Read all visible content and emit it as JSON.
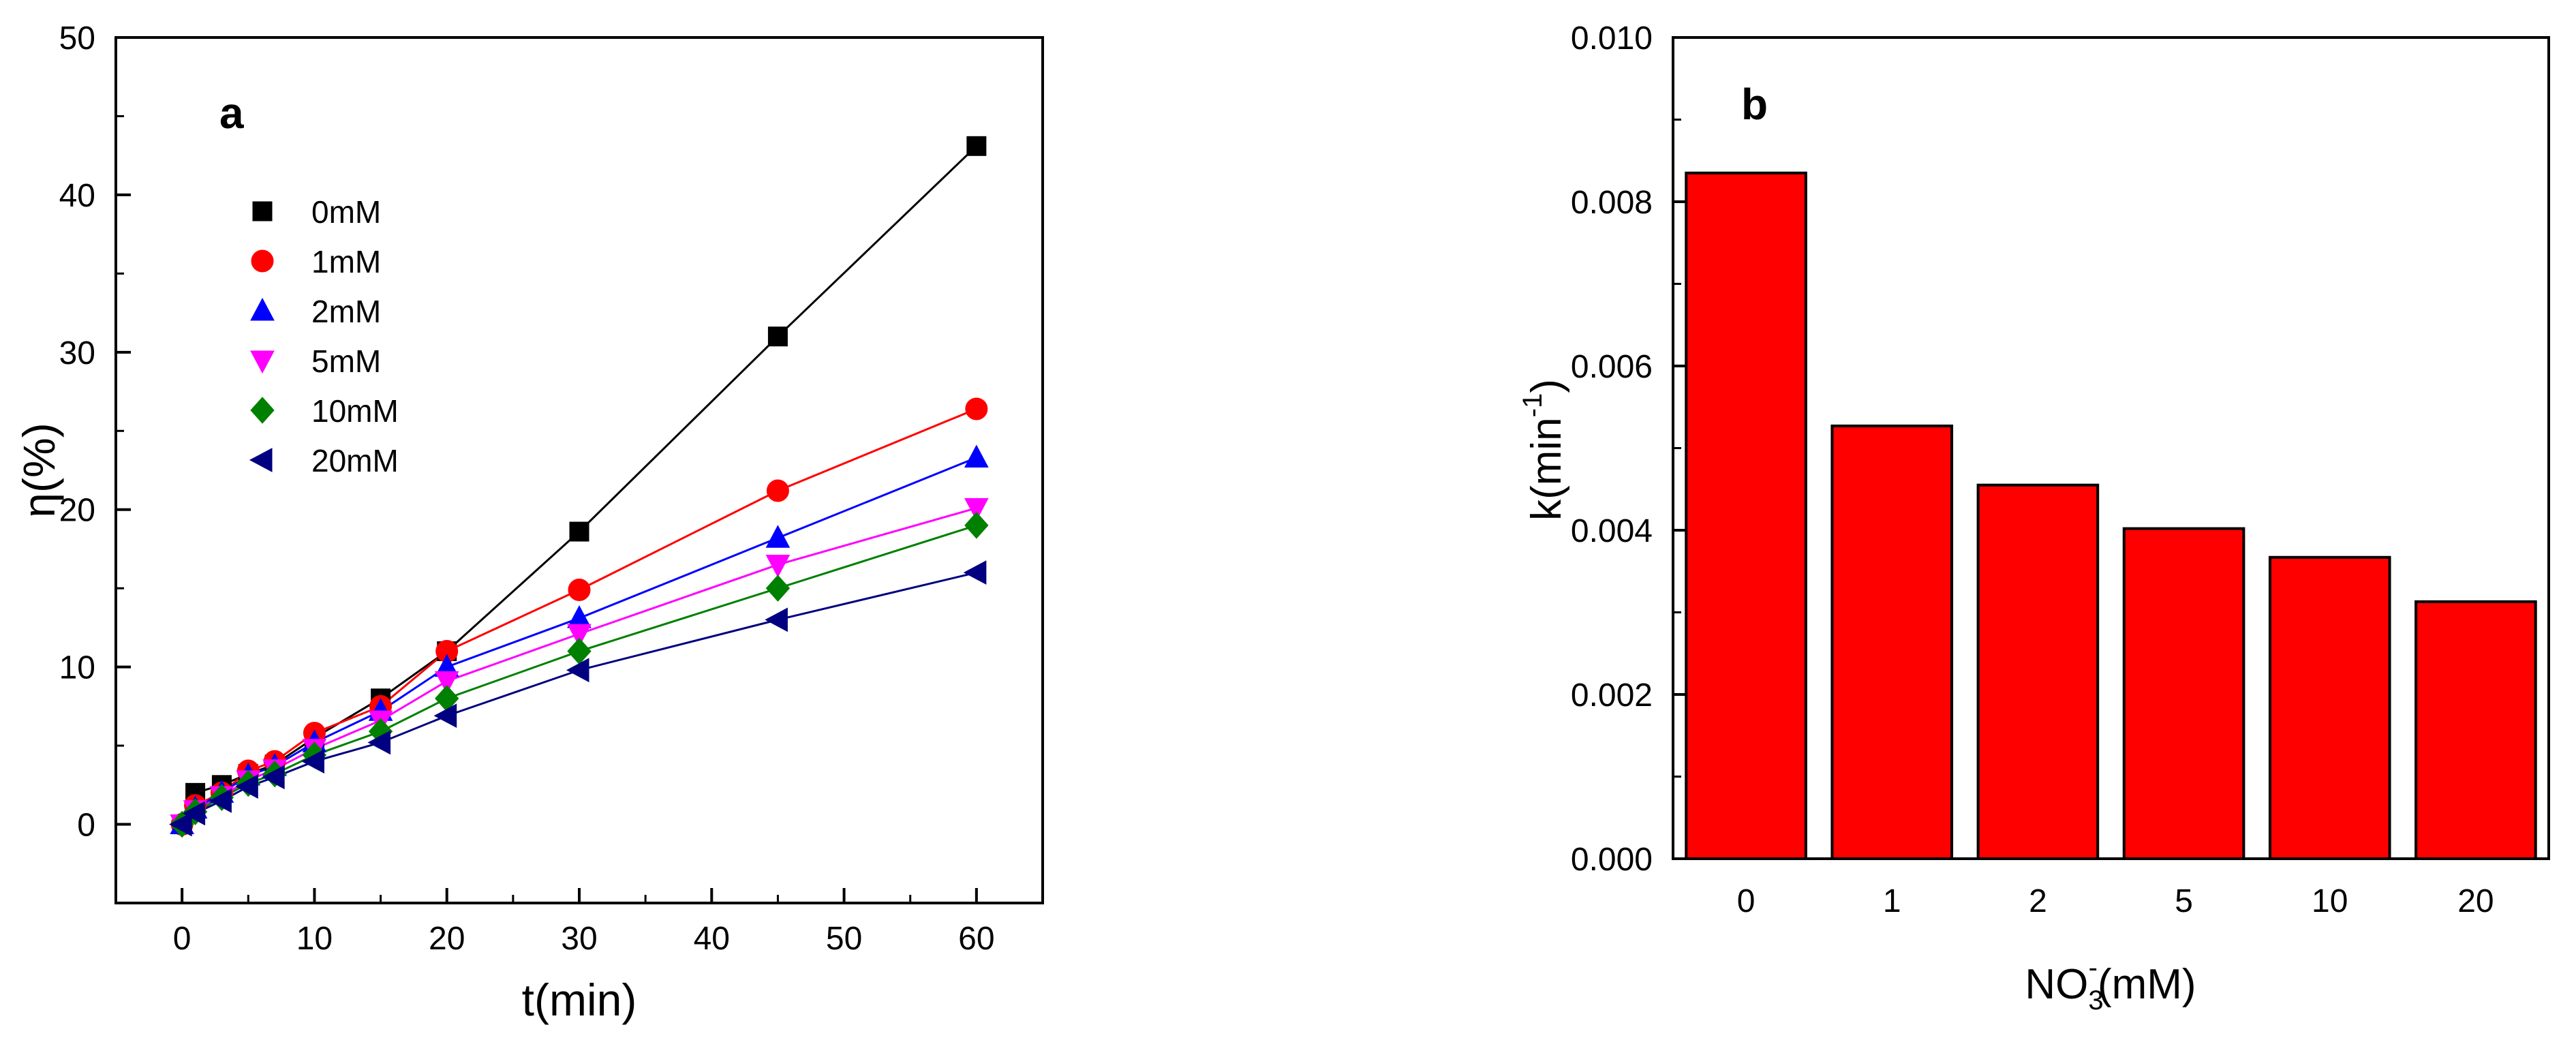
{
  "chart_data": [
    {
      "type": "scatter",
      "panel_label": "a",
      "title": "",
      "xlabel": "t(min)",
      "ylabel_main": "η",
      "ylabel_unit": "(%)",
      "xlim": [
        -5,
        65
      ],
      "ylim": [
        -5,
        50
      ],
      "xticks": [
        0,
        10,
        20,
        30,
        40,
        50,
        60
      ],
      "yticks": [
        0,
        10,
        20,
        30,
        40,
        50
      ],
      "legend_position": "upper-left",
      "x": [
        0,
        1,
        3,
        5,
        7,
        10,
        15,
        20,
        30,
        45,
        60
      ],
      "series": [
        {
          "name": "0mM",
          "marker": "square",
          "color": "#000000",
          "line_color": "#000000",
          "values": [
            0,
            2.0,
            2.5,
            3.2,
            3.8,
            5.5,
            8.0,
            11.0,
            18.6,
            31.0,
            43.1
          ]
        },
        {
          "name": "1mM",
          "marker": "circle",
          "color": "#ff0000",
          "line_color": "#ff0000",
          "values": [
            0,
            1.2,
            2.0,
            3.4,
            4.0,
            5.8,
            7.5,
            11.0,
            14.9,
            21.2,
            26.4
          ]
        },
        {
          "name": "2mM",
          "marker": "triangle-up",
          "color": "#0000ff",
          "line_color": "#0000ff",
          "values": [
            0,
            1.0,
            2.0,
            3.1,
            3.7,
            5.2,
            7.2,
            10.0,
            13.1,
            18.2,
            23.3
          ]
        },
        {
          "name": "5mM",
          "marker": "triangle-down",
          "color": "#ff00ff",
          "line_color": "#ff00ff",
          "values": [
            0,
            0.9,
            1.8,
            2.8,
            3.5,
            4.8,
            6.6,
            9.1,
            12.1,
            16.5,
            20.1
          ]
        },
        {
          "name": "10mM",
          "marker": "diamond",
          "color": "#008000",
          "line_color": "#008000",
          "values": [
            0,
            0.8,
            1.7,
            2.6,
            3.2,
            4.4,
            5.9,
            8.0,
            11.0,
            15.0,
            19.0
          ]
        },
        {
          "name": "20mM",
          "marker": "triangle-left",
          "color": "#000080",
          "line_color": "#000080",
          "values": [
            0,
            0.7,
            1.5,
            2.4,
            3.0,
            4.0,
            5.2,
            6.9,
            9.8,
            13.0,
            16.0
          ]
        }
      ]
    },
    {
      "type": "bar",
      "panel_label": "b",
      "title": "",
      "xlabel_main": "NO",
      "xlabel_sub": "3",
      "xlabel_sup": "-",
      "xlabel_rest": "(mM)",
      "ylabel_main": "k(min",
      "ylabel_sup": "-1",
      "ylabel_end": ")",
      "ylim": [
        0.0,
        0.01
      ],
      "yticks": [
        "0.000",
        "0.002",
        "0.004",
        "0.006",
        "0.008",
        "0.010"
      ],
      "bar_color": "#ff0000",
      "categories": [
        "0",
        "1",
        "2",
        "5",
        "10",
        "20"
      ],
      "values": [
        0.00835,
        0.00527,
        0.00455,
        0.00402,
        0.00367,
        0.00313
      ]
    }
  ]
}
